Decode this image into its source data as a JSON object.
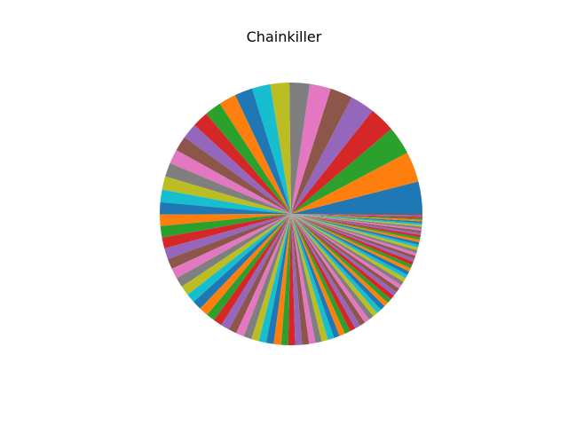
{
  "chart_data": {
    "type": "pie",
    "title": "Chainkiller",
    "start_angle_deg": 0,
    "direction": "counterclockwise",
    "colors": [
      "#1f77b4",
      "#ff7f0e",
      "#2ca02c",
      "#d62728",
      "#9467bd",
      "#8c564b",
      "#e377c2",
      "#7f7f7f",
      "#bcbd22",
      "#17becf"
    ],
    "values": [
      5.6,
      5.3,
      4.9,
      4.5,
      4.2,
      3.9,
      3.7,
      3.5,
      3.3,
      3.2,
      3.1,
      3.0,
      2.9,
      2.8,
      2.7,
      2.6,
      2.5,
      2.4,
      2.3,
      2.2,
      2.1,
      2.0,
      2.0,
      1.9,
      1.9,
      1.8,
      1.8,
      1.7,
      1.7,
      1.6,
      1.6,
      1.6,
      1.5,
      1.5,
      1.5,
      1.4,
      1.4,
      1.4,
      1.3,
      1.3,
      1.3,
      1.3,
      1.2,
      1.2,
      1.2,
      1.2,
      1.1,
      1.1,
      1.1,
      1.1,
      1.0,
      1.0,
      1.0,
      1.0,
      0.95,
      0.95,
      0.9,
      0.9,
      0.9,
      0.85,
      0.85,
      0.8,
      0.8,
      0.8,
      0.75,
      0.75,
      0.7,
      0.7,
      0.7,
      0.65,
      0.65,
      0.6,
      0.6,
      0.6,
      0.55,
      0.55,
      0.5,
      0.5,
      0.5,
      0.45,
      0.45,
      0.45,
      0.4,
      0.4,
      0.4,
      0.35,
      0.35,
      0.35,
      0.3,
      0.3,
      0.3,
      0.3,
      0.25,
      0.25,
      0.25,
      0.25
    ]
  }
}
